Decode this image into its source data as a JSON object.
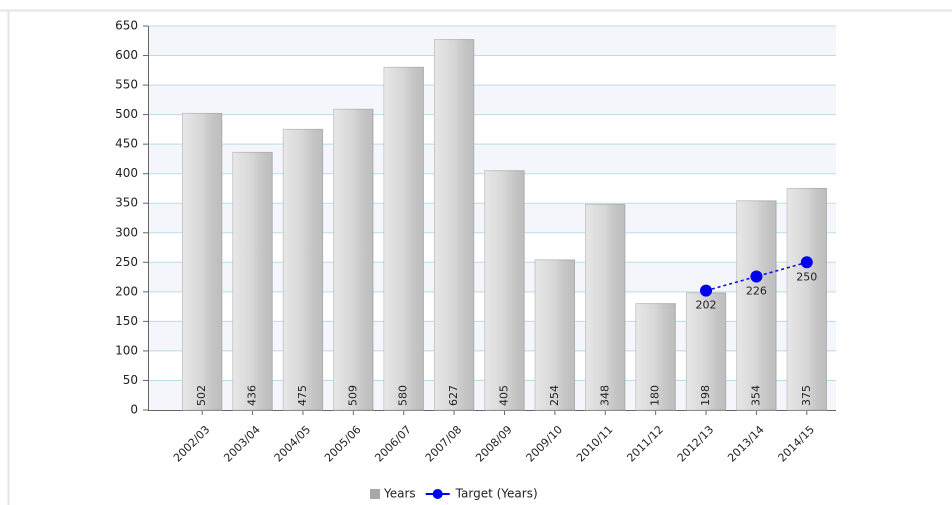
{
  "chart_data": {
    "type": "bar",
    "categories": [
      "2002/03",
      "2003/04",
      "2004/05",
      "2005/06",
      "2006/07",
      "2007/08",
      "2008/09",
      "2009/10",
      "2010/11",
      "2011/12",
      "2012/13",
      "2013/14",
      "2014/15"
    ],
    "series": [
      {
        "name": "Years",
        "type": "bar",
        "color": "#cfcfcf",
        "values": [
          502,
          436,
          475,
          509,
          580,
          627,
          405,
          254,
          348,
          180,
          198,
          354,
          375
        ]
      },
      {
        "name": "Target (Years)",
        "type": "line",
        "color": "#0000ee",
        "values": [
          null,
          null,
          null,
          null,
          null,
          null,
          null,
          null,
          null,
          null,
          202,
          226,
          250
        ]
      }
    ],
    "ylim": [
      0,
      650
    ],
    "yticks": [
      0,
      50,
      100,
      150,
      200,
      250,
      300,
      350,
      400,
      450,
      500,
      550,
      600,
      650
    ],
    "grid": true,
    "legend": "bottom"
  }
}
